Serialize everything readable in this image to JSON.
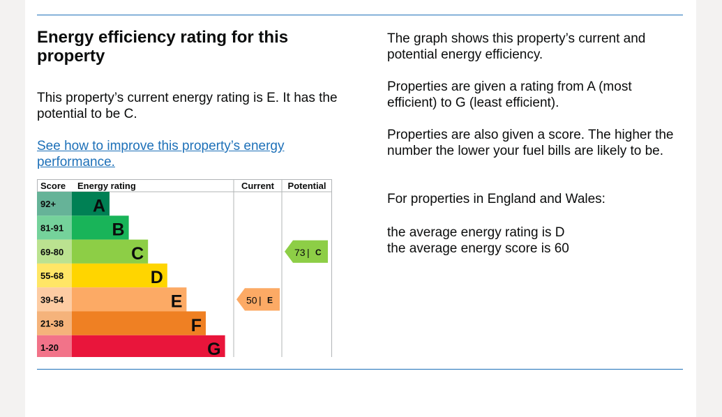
{
  "heading": "Energy efficiency rating for this property",
  "summary": "This property’s current energy rating is E. It has the potential to be C.",
  "improve_link": "See how to improve this property’s energy performance.",
  "explanation": {
    "p1": "The graph shows this property’s current and potential energy efficiency.",
    "p2": "Properties are given a rating from A (most efficient) to G (least efficient).",
    "p3": "Properties are also given a score. The higher the number the lower your fuel bills are likely to be.",
    "p4": "For properties in England and Wales:",
    "p5": "the average energy rating is D",
    "p6": "the average energy score is 60"
  },
  "chart_data": {
    "type": "bar",
    "headers": {
      "score": "Score",
      "rating": "Energy rating",
      "current": "Current",
      "potential": "Potential"
    },
    "bands": [
      {
        "score": "92+",
        "letter": "A",
        "color": "#008054",
        "score_bg": "#66b398"
      },
      {
        "score": "81-91",
        "letter": "B",
        "color": "#19b459",
        "score_bg": "#75d29b"
      },
      {
        "score": "69-80",
        "letter": "C",
        "color": "#8dce46",
        "score_bg": "#bbe290"
      },
      {
        "score": "55-68",
        "letter": "D",
        "color": "#ffd500",
        "score_bg": "#ffe666"
      },
      {
        "score": "39-54",
        "letter": "E",
        "color": "#fcaa65",
        "score_bg": "#fdcca3"
      },
      {
        "score": "21-38",
        "letter": "F",
        "color": "#ef8023",
        "score_bg": "#f5b37b"
      },
      {
        "score": "1-20",
        "letter": "G",
        "color": "#e9153b",
        "score_bg": "#f27389"
      }
    ],
    "current": {
      "score": 50,
      "letter": "E",
      "color": "#fcaa65"
    },
    "potential": {
      "score": 73,
      "letter": "C",
      "color": "#8dce46"
    }
  }
}
